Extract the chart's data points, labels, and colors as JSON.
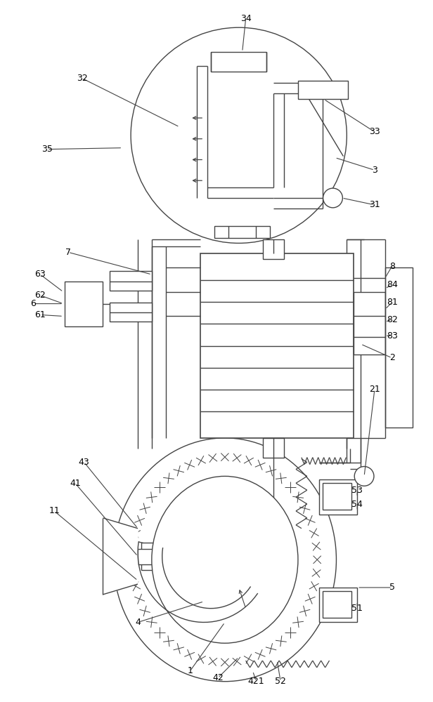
{
  "bg_color": "#ffffff",
  "lc": "#444444",
  "lw": 1.0,
  "fig_w": 6.16,
  "fig_h": 10.0,
  "dpi": 100
}
